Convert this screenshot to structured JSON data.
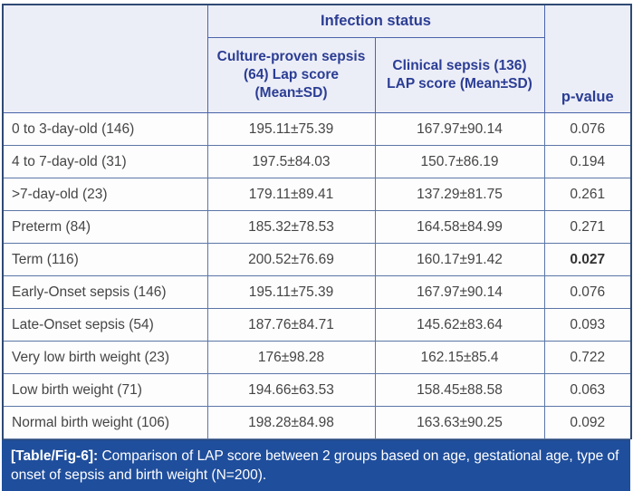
{
  "table": {
    "header": {
      "corner": "",
      "group_title": "Infection status",
      "culture_col": "Culture-proven sepsis (64) Lap score (Mean±SD)",
      "clinical_col": "Clinical sepsis (136) LAP score (Mean±SD)",
      "p_value_col": "p-value"
    },
    "rows": [
      {
        "label": "0 to 3-day-old (146)",
        "culture": "195.11±75.39",
        "clinical": "167.97±90.14",
        "p": "0.076",
        "p_bold": false
      },
      {
        "label": "4 to 7-day-old (31)",
        "culture": "197.5±84.03",
        "clinical": "150.7±86.19",
        "p": "0.194",
        "p_bold": false
      },
      {
        "label": ">7-day-old (23)",
        "culture": "179.11±89.41",
        "clinical": "137.29±81.75",
        "p": "0.261",
        "p_bold": false
      },
      {
        "label": "Preterm (84)",
        "culture": "185.32±78.53",
        "clinical": "164.58±84.99",
        "p": "0.271",
        "p_bold": false
      },
      {
        "label": "Term (116)",
        "culture": "200.52±76.69",
        "clinical": "160.17±91.42",
        "p": "0.027",
        "p_bold": true
      },
      {
        "label": "Early-Onset sepsis (146)",
        "culture": "195.11±75.39",
        "clinical": "167.97±90.14",
        "p": "0.076",
        "p_bold": false
      },
      {
        "label": "Late-Onset sepsis (54)",
        "culture": "187.76±84.71",
        "clinical": "145.62±83.64",
        "p": "0.093",
        "p_bold": false
      },
      {
        "label": "Very low birth weight (23)",
        "culture": "176±98.28",
        "clinical": "162.15±85.4",
        "p": "0.722",
        "p_bold": false
      },
      {
        "label": "Low birth weight (71)",
        "culture": "194.66±63.53",
        "clinical": "158.45±88.58",
        "p": "0.063",
        "p_bold": false
      },
      {
        "label": "Normal birth weight (106)",
        "culture": "198.28±84.98",
        "clinical": "163.63±90.25",
        "p": "0.092",
        "p_bold": false
      }
    ]
  },
  "caption": {
    "label": "[Table/Fig-6]:",
    "text": " Comparison of LAP score between 2 groups based on age, gestational age, type of onset of sepsis and birth weight (N=200)."
  },
  "colors": {
    "header_bg": "#eceef7",
    "header_text": "#2b3d94",
    "body_text": "#454545",
    "border_outer": "#2e4a74",
    "border_inner": "#5b76a6",
    "caption_bg": "#1f4e9c",
    "caption_text": "#ffffff"
  }
}
